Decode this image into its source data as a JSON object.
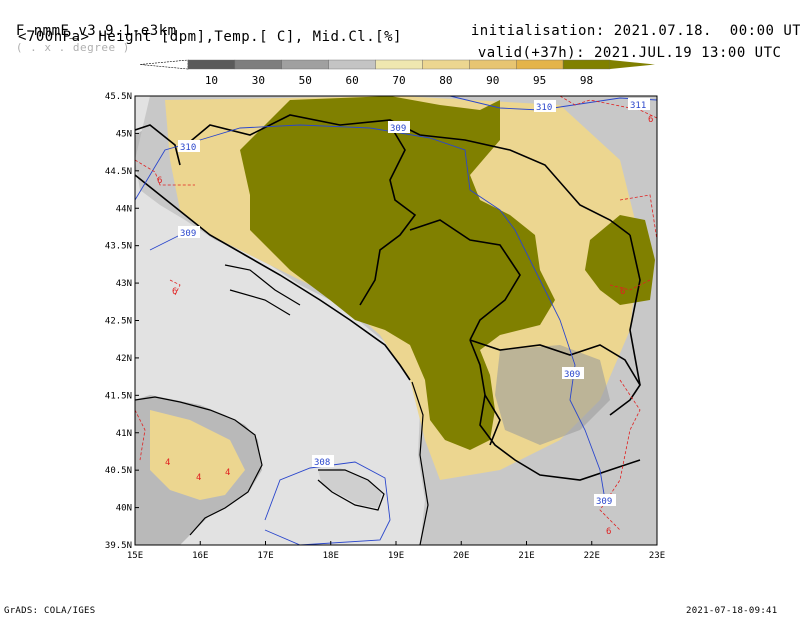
{
  "header": {
    "model": "F-nmmE_v3.9.1-e3km",
    "projection": "( . x . degree )",
    "fields": "<700hPa> Height [dpm],Temp.[ C], Mid.Cl.[%]",
    "init_label": "initialisation:",
    "init_value": "2021.07.18.  00:00 UTC",
    "valid_label": "valid(+37h):",
    "valid_value": "2021.JUL.19 13:00 UTC"
  },
  "colorbar": {
    "levels": [
      "10",
      "30",
      "50",
      "60",
      "70",
      "80",
      "90",
      "95",
      "98"
    ],
    "colors": [
      "#5a5a5a",
      "#7e7e7e",
      "#a0a0a0",
      "#c4c4c4",
      "#efe7b0",
      "#ecd690",
      "#e7c572",
      "#e4b44a",
      "#808000"
    ]
  },
  "map_colors": {
    "sea": "#e2e2e2",
    "overcast": "#808000",
    "border": "#000000",
    "height_contour": "#2b47cc",
    "temp_contour": "#e02020"
  },
  "axes": {
    "lat_labels": [
      "45.5N",
      "45N",
      "44.5N",
      "44N",
      "43.5N",
      "43N",
      "42.5N",
      "42N",
      "41.5N",
      "41N",
      "40.5N",
      "40N",
      "39.5N"
    ],
    "lon_labels": [
      "15E",
      "16E",
      "17E",
      "18E",
      "19E",
      "20E",
      "21E",
      "22E",
      "23E"
    ]
  },
  "contour_labels": {
    "height": [
      "309",
      "310",
      "310",
      "311",
      "309",
      "309",
      "308",
      "309"
    ],
    "temp": [
      "6",
      "6",
      "6",
      "6",
      "4",
      "4",
      "4",
      "6"
    ]
  },
  "footer": {
    "left": "GrADS: COLA/IGES",
    "right": "2021-07-18-09:41"
  }
}
